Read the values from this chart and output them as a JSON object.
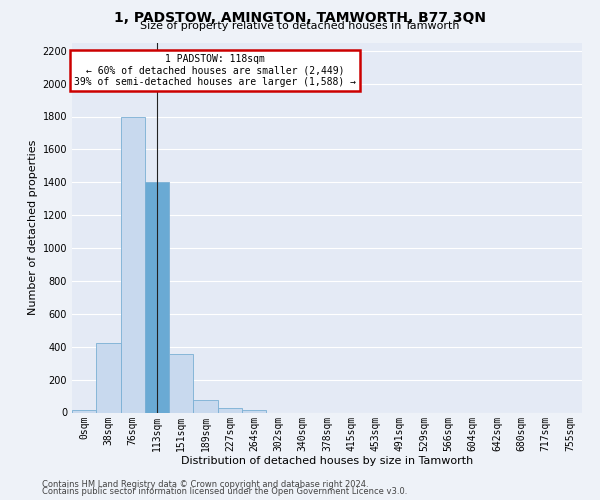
{
  "title": "1, PADSTOW, AMINGTON, TAMWORTH, B77 3QN",
  "subtitle": "Size of property relative to detached houses in Tamworth",
  "xlabel": "Distribution of detached houses by size in Tamworth",
  "ylabel": "Number of detached properties",
  "bar_labels": [
    "0sqm",
    "38sqm",
    "76sqm",
    "113sqm",
    "151sqm",
    "189sqm",
    "227sqm",
    "264sqm",
    "302sqm",
    "340sqm",
    "378sqm",
    "415sqm",
    "453sqm",
    "491sqm",
    "529sqm",
    "566sqm",
    "604sqm",
    "642sqm",
    "680sqm",
    "717sqm",
    "755sqm"
  ],
  "bar_values": [
    15,
    420,
    1800,
    1400,
    355,
    75,
    25,
    18,
    0,
    0,
    0,
    0,
    0,
    0,
    0,
    0,
    0,
    0,
    0,
    0,
    0
  ],
  "bar_color": "#c8d9ee",
  "bar_edge_color": "#7aafd4",
  "highlight_bar_index": 3,
  "highlight_bar_color": "#6aaad4",
  "annotation_line1": "1 PADSTOW: 118sqm",
  "annotation_line2": "← 60% of detached houses are smaller (2,449)",
  "annotation_line3": "39% of semi-detached houses are larger (1,588) →",
  "annotation_box_facecolor": "#ffffff",
  "annotation_box_edgecolor": "#cc0000",
  "vline_x": 3,
  "ylim": [
    0,
    2250
  ],
  "yticks": [
    0,
    200,
    400,
    600,
    800,
    1000,
    1200,
    1400,
    1600,
    1800,
    2000,
    2200
  ],
  "footer_line1": "Contains HM Land Registry data © Crown copyright and database right 2024.",
  "footer_line2": "Contains public sector information licensed under the Open Government Licence v3.0.",
  "bg_color": "#eef2f8",
  "plot_bg_color": "#e4eaf5",
  "grid_color": "#ffffff",
  "title_fontsize": 10,
  "subtitle_fontsize": 8,
  "ylabel_fontsize": 8,
  "xlabel_fontsize": 8,
  "annotation_fontsize": 7,
  "tick_fontsize": 7,
  "footer_fontsize": 6
}
